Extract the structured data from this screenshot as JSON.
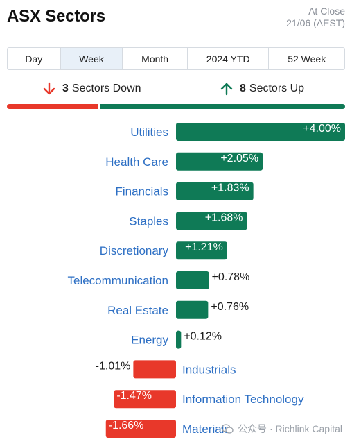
{
  "header": {
    "title": "ASX Sectors",
    "close_line1": "At Close",
    "close_line2": "21/06 (AEST)"
  },
  "tabs": [
    {
      "label": "Day",
      "active": false
    },
    {
      "label": "Week",
      "active": true
    },
    {
      "label": "Month",
      "active": false
    },
    {
      "label": "2024 YTD",
      "active": false
    },
    {
      "label": "52 Week",
      "active": false
    }
  ],
  "summary": {
    "down_count": "3",
    "down_label": "Sectors Down",
    "up_count": "8",
    "up_label": "Sectors Up"
  },
  "colors": {
    "up": "#0f7a56",
    "down": "#e8382a",
    "label": "#2d6fc4"
  },
  "watermark": {
    "text": "公众号 · Richlink Capital"
  },
  "chart_data": {
    "type": "bar",
    "orientation": "horizontal-diverging",
    "categories": [
      "Utilities",
      "Health Care",
      "Financials",
      "Staples",
      "Discretionary",
      "Telecommunication",
      "Real Estate",
      "Energy",
      "Industrials",
      "Information Technology",
      "Materials"
    ],
    "values": [
      4.0,
      2.05,
      1.83,
      1.68,
      1.21,
      0.78,
      0.76,
      0.12,
      -1.01,
      -1.47,
      -1.66
    ],
    "labels": [
      "+4.00%",
      "+2.05%",
      "+1.83%",
      "+1.68%",
      "+1.21%",
      "+0.78%",
      "+0.76%",
      "+0.12%",
      "-1.01%",
      "-1.47%",
      "-1.66%"
    ],
    "unit": "%"
  }
}
